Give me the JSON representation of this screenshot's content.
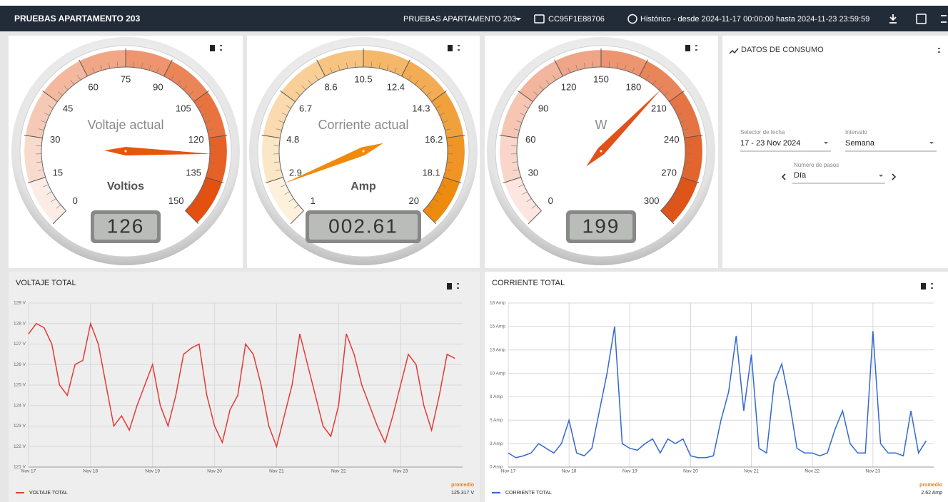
{
  "header": {
    "title": "PRUEBAS APARTAMENTO 203",
    "selector": "PRUEBAS APARTAMENTO 203",
    "device": "CC95F1E88706",
    "history": "Histórico - desde 2024-11-17 00:00:00 hasta 2024-11-23 23:59:59"
  },
  "gauges": [
    {
      "label": "Voltaje actual",
      "unit": "Voltios",
      "min": 0,
      "max": 150,
      "ticks": [
        0,
        15,
        30,
        45,
        60,
        75,
        90,
        105,
        120,
        135,
        150
      ],
      "value": 126,
      "display": "126",
      "band_colors": [
        "#fcece6",
        "#e3500f"
      ],
      "needle_color": "#e8560c"
    },
    {
      "label": "Corriente actual",
      "unit": "Amp",
      "min": 1,
      "max": 20,
      "ticks": [
        1,
        2.9,
        4.8,
        6.7,
        8.6,
        10.5,
        12.4,
        14.3,
        16.2,
        18.1,
        20
      ],
      "value": 2.61,
      "display": "002.61",
      "band_colors": [
        "#fdf1dc",
        "#ee8a0e"
      ],
      "needle_color": "#ef8a0c"
    },
    {
      "label": "W",
      "min": 0,
      "max": 300,
      "ticks": [
        0,
        30,
        60,
        90,
        120,
        150,
        180,
        210,
        240,
        270,
        300
      ],
      "value": 199,
      "display": "199",
      "band_colors": [
        "#fce6df",
        "#df5418"
      ],
      "needle_color": "#e0521a"
    }
  ],
  "consumo": {
    "title": "DATOS DE CONSUMO",
    "date_label": "Selector de fecha",
    "date_value": "17 - 23 Nov 2024",
    "interval_label": "Intervalo",
    "interval_value": "Semana",
    "steps_label": "Número de pasos",
    "steps_value": "Día"
  },
  "charts": [
    {
      "type": "line",
      "title": "VOLTAJE TOTAL",
      "x": [
        0,
        0.125,
        0.25,
        0.375,
        0.5,
        0.625,
        0.75,
        0.875,
        1,
        1.125,
        1.25,
        1.375,
        1.5,
        1.625,
        1.75,
        1.875,
        2,
        2.125,
        2.25,
        2.375,
        2.5,
        2.625,
        2.75,
        2.875,
        3,
        3.125,
        3.25,
        3.375,
        3.5,
        3.625,
        3.75,
        3.875,
        4,
        4.125,
        4.25,
        4.375,
        4.5,
        4.625,
        4.75,
        4.875,
        5,
        5.125,
        5.25,
        5.375,
        5.5,
        5.625,
        5.75,
        5.875,
        6,
        6.125,
        6.25,
        6.375,
        6.5,
        6.625,
        6.75,
        6.875
      ],
      "series": [
        {
          "name": "VOLTAJE TOTAL",
          "color": "#e53935",
          "values": [
            127.5,
            128,
            127.8,
            127,
            125,
            124.5,
            126,
            126.2,
            128,
            127,
            125,
            123,
            123.5,
            122.8,
            124,
            125,
            126,
            124,
            123,
            124.5,
            126.5,
            126.8,
            127,
            124.5,
            123,
            122.2,
            123.8,
            124.5,
            127,
            126.5,
            125,
            123,
            122,
            123.5,
            125,
            127.5,
            126,
            124.5,
            123,
            122.5,
            124,
            127.5,
            126.5,
            125,
            124,
            123,
            122.2,
            123.5,
            125,
            126.5,
            126,
            124,
            122.8,
            124.5,
            126.5,
            126.3
          ]
        }
      ],
      "xlim": [
        0,
        7
      ],
      "xticks": [
        {
          "value": 0,
          "label": "Nov 17"
        },
        {
          "value": 1,
          "label": "Nov 18"
        },
        {
          "value": 2,
          "label": "Nov 19"
        },
        {
          "value": 3,
          "label": "Nov 20"
        },
        {
          "value": 4,
          "label": "Nov 21"
        },
        {
          "value": 5,
          "label": "Nov 22"
        },
        {
          "value": 6,
          "label": "Nov 23"
        }
      ],
      "ylim": [
        121,
        129
      ],
      "yticks": [
        {
          "value": 121,
          "label": "121 V"
        },
        {
          "value": 122,
          "label": "122 V"
        },
        {
          "value": 123,
          "label": "123 V"
        },
        {
          "value": 124,
          "label": "124 V"
        },
        {
          "value": 125,
          "label": "125 V"
        },
        {
          "value": 126,
          "label": "126 V"
        },
        {
          "value": 127,
          "label": "127 V"
        },
        {
          "value": 128,
          "label": "128 V"
        },
        {
          "value": 129,
          "label": "129 V"
        }
      ],
      "grid": true,
      "background": "#eeeeee",
      "avg_label": "promedio",
      "avg_value": "125.317 V"
    },
    {
      "type": "line",
      "title": "CORRIENTE TOTAL",
      "x": [
        0,
        0.125,
        0.25,
        0.375,
        0.5,
        0.625,
        0.75,
        0.875,
        1,
        1.125,
        1.25,
        1.375,
        1.5,
        1.625,
        1.75,
        1.875,
        2,
        2.125,
        2.25,
        2.375,
        2.5,
        2.625,
        2.75,
        2.875,
        3,
        3.125,
        3.25,
        3.375,
        3.5,
        3.625,
        3.75,
        3.875,
        4,
        4.125,
        4.25,
        4.375,
        4.5,
        4.625,
        4.75,
        4.875,
        5,
        5.125,
        5.25,
        5.375,
        5.5,
        5.625,
        5.75,
        5.875,
        6,
        6.125,
        6.25,
        6.375,
        6.5,
        6.625,
        6.75,
        6.875
      ],
      "series": [
        {
          "name": "CORRIENTE TOTAL",
          "color": "#3367d6",
          "values": [
            1.5,
            1,
            1.2,
            1.5,
            2.5,
            2,
            1.5,
            2.5,
            5,
            1.5,
            1.2,
            2,
            6,
            10,
            15,
            2.5,
            2,
            1.8,
            2.5,
            3,
            1.5,
            3,
            2.5,
            3,
            1.2,
            1,
            1,
            1.2,
            5,
            8,
            14,
            6,
            12,
            2,
            1.5,
            9,
            11,
            7,
            2,
            1.5,
            1.5,
            1.2,
            1.5,
            4,
            6,
            2.5,
            1.5,
            1.5,
            14.5,
            2.5,
            1.5,
            1.5,
            1.2,
            6,
            1.5,
            2.8
          ]
        }
      ],
      "xlim": [
        0,
        7
      ],
      "xticks": [
        {
          "value": 0,
          "label": "Nov 17"
        },
        {
          "value": 1,
          "label": "Nov 18"
        },
        {
          "value": 2,
          "label": "Nov 19"
        },
        {
          "value": 3,
          "label": "Nov 20"
        },
        {
          "value": 4,
          "label": "Nov 21"
        },
        {
          "value": 5,
          "label": "Nov 22"
        },
        {
          "value": 6,
          "label": "Nov 23"
        }
      ],
      "ylim": [
        0,
        17.5
      ],
      "yticks": [
        {
          "value": 0,
          "label": "0 Amp"
        },
        {
          "value": 2.5,
          "label": "3 Amp"
        },
        {
          "value": 5,
          "label": "5 Amp"
        },
        {
          "value": 7.5,
          "label": "8 Amp"
        },
        {
          "value": 10,
          "label": "10 Amp"
        },
        {
          "value": 12.5,
          "label": "13 Amp"
        },
        {
          "value": 15,
          "label": "15 Amp"
        },
        {
          "value": 17.5,
          "label": "18 Amp"
        }
      ],
      "grid": true,
      "background": "#ffffff",
      "avg_label": "promedio",
      "avg_value": "2.62 Amp"
    }
  ]
}
